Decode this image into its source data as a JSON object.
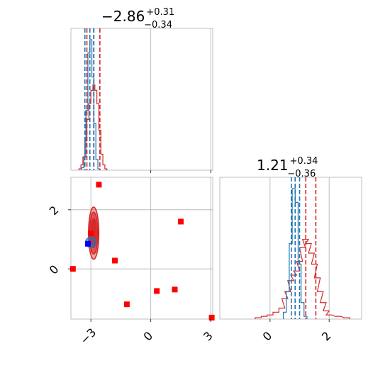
{
  "colors": {
    "red": "#d62728",
    "blue": "#1f77b4",
    "marker_red": "#ff0000",
    "marker_blue": "#0000ff",
    "grid": "#b0b0b0"
  },
  "chart_data": [
    {
      "panel": "hist-param1",
      "type": "step",
      "title": {
        "main": "−2.86",
        "sup": "+0.31",
        "sub": "−0.34"
      },
      "xlim": [
        -4.0,
        3.1
      ],
      "grid_x": [
        0,
        3
      ],
      "series": [
        {
          "color": "red",
          "bin_centers": [
            -3.55,
            -3.45,
            -3.35,
            -3.25,
            -3.15,
            -3.05,
            -2.95,
            -2.85,
            -2.75,
            -2.65,
            -2.55,
            -2.45,
            -2.35,
            -2.25
          ],
          "counts": [
            0.01,
            0.04,
            0.1,
            0.22,
            0.38,
            0.5,
            0.6,
            0.64,
            0.6,
            0.5,
            0.3,
            0.12,
            0.04,
            0.01
          ]
        },
        {
          "color": "blue",
          "bin_centers": [
            -3.4,
            -3.3,
            -3.2,
            -3.1,
            -3.0,
            -2.9,
            -2.8,
            -2.7,
            -2.6
          ],
          "counts": [
            0.02,
            0.1,
            0.45,
            0.88,
            0.98,
            0.7,
            0.35,
            0.08,
            0.01
          ]
        }
      ],
      "quantiles": [
        {
          "color": "red",
          "values": [
            -3.2,
            -2.86,
            -2.55
          ]
        },
        {
          "color": "blue",
          "values": [
            -3.3,
            -3.05,
            -2.85
          ]
        }
      ]
    },
    {
      "panel": "scatter-2d",
      "type": "scatter",
      "xlim": [
        -4.0,
        3.1
      ],
      "ylim": [
        -1.7,
        3.1
      ],
      "x_ticks": [
        -3,
        0,
        3
      ],
      "x_tick_labels": [
        "−3",
        "0",
        "3"
      ],
      "y_ticks": [
        0,
        2
      ],
      "y_tick_labels": [
        "0",
        "2"
      ],
      "red_contours": [
        {
          "cx": -2.86,
          "cy": 1.21,
          "rx": 0.95,
          "ry": 0.9,
          "fill_opacity": 0.4
        },
        {
          "cx": -2.86,
          "cy": 1.21,
          "rx": 0.75,
          "ry": 0.72,
          "fill_opacity": 0.65
        },
        {
          "cx": -2.86,
          "cy": 1.21,
          "rx": 0.5,
          "ry": 0.5,
          "fill_opacity": 0.95
        }
      ],
      "blue_contours": [
        {
          "cx": -3.0,
          "cy": 0.9,
          "rx": 0.5,
          "ry": 0.28
        },
        {
          "cx": -3.0,
          "cy": 0.9,
          "rx": 0.3,
          "ry": 0.18
        }
      ],
      "red_markers": [
        [
          -2.6,
          2.85
        ],
        [
          -3.9,
          0.0
        ],
        [
          -3.0,
          1.2
        ],
        [
          -1.8,
          0.28
        ],
        [
          1.5,
          1.6
        ],
        [
          -1.2,
          -1.2
        ],
        [
          0.3,
          -0.75
        ],
        [
          1.2,
          -0.7
        ],
        [
          3.05,
          -1.65
        ]
      ],
      "blue_marker": [
        -3.15,
        0.85
      ]
    },
    {
      "panel": "hist-param2",
      "type": "step",
      "title": {
        "main": "1.21",
        "sup": "+0.34",
        "sub": "−0.36"
      },
      "xlim": [
        -1.7,
        3.1
      ],
      "x_ticks": [
        0,
        2
      ],
      "x_tick_labels": [
        "0",
        "2"
      ],
      "series": [
        {
          "color": "red",
          "bin_centers": [
            -0.4,
            -0.2,
            0.0,
            0.2,
            0.4,
            0.5,
            0.6,
            0.7,
            0.8,
            0.9,
            1.0,
            1.1,
            1.2,
            1.3,
            1.4,
            1.5,
            1.6,
            1.7,
            1.8,
            1.9,
            2.0,
            2.3,
            2.6
          ],
          "counts": [
            0.01,
            0.02,
            0.03,
            0.05,
            0.08,
            0.15,
            0.2,
            0.28,
            0.32,
            0.35,
            0.42,
            0.52,
            0.58,
            0.55,
            0.48,
            0.4,
            0.3,
            0.2,
            0.12,
            0.06,
            0.03,
            0.02,
            0.01
          ]
        },
        {
          "color": "blue",
          "bin_centers": [
            0.5,
            0.6,
            0.7,
            0.8,
            0.9,
            1.0,
            1.1,
            1.2
          ],
          "counts": [
            0.05,
            0.2,
            0.55,
            0.95,
            0.85,
            0.4,
            0.12,
            0.02
          ]
        }
      ],
      "quantiles": [
        {
          "color": "red",
          "values": [
            0.85,
            1.21,
            1.55
          ]
        },
        {
          "color": "blue",
          "values": [
            0.72,
            0.85,
            1.0
          ]
        }
      ]
    }
  ]
}
